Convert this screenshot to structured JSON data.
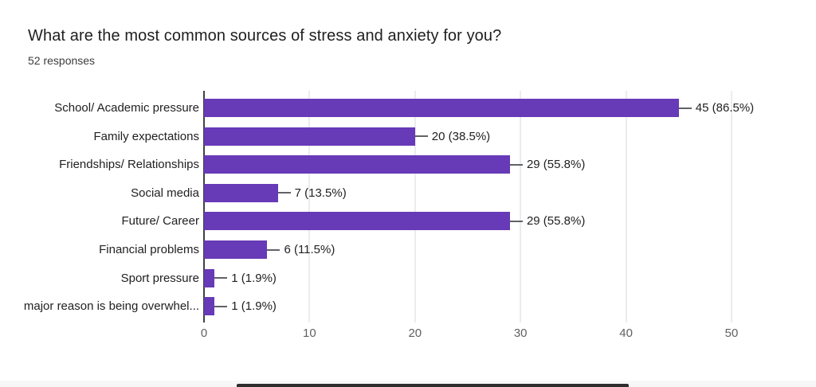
{
  "header": {
    "title": "What are the most common sources of stress and anxiety for you?",
    "subtitle": "52 responses"
  },
  "chart_data": {
    "type": "bar",
    "orientation": "horizontal",
    "title": "What are the most common sources of stress and anxiety for you?",
    "subtitle": "52 responses",
    "categories": [
      "School/ Academic pressure",
      "Family expectations",
      "Friendships/ Relationships",
      "Social media",
      "Future/ Career",
      "Financial problems",
      "Sport pressure",
      "major reason is being overwhel..."
    ],
    "values": [
      45,
      20,
      29,
      7,
      29,
      6,
      1,
      1
    ],
    "value_labels": [
      "45 (86.5%)",
      "20 (38.5%)",
      "29 (55.8%)",
      "7 (13.5%)",
      "29 (55.8%)",
      "6 (11.5%)",
      "1 (1.9%)",
      "1 (1.9%)"
    ],
    "xlim": [
      0,
      50
    ],
    "xticks": [
      0,
      10,
      20,
      30,
      40,
      50
    ],
    "grid": true,
    "legend": false
  },
  "colors": {
    "bar": "#673ab7",
    "title_text": "#1f1f1f",
    "subtitle_text": "#3c3c3c",
    "label_text": "#212121",
    "tick_text": "#616161",
    "gridline": "#ececec",
    "axis_line": "#424242",
    "connector": "#5f6368",
    "background": "#ffffff",
    "bottom_bar": "#2e2e2e"
  }
}
